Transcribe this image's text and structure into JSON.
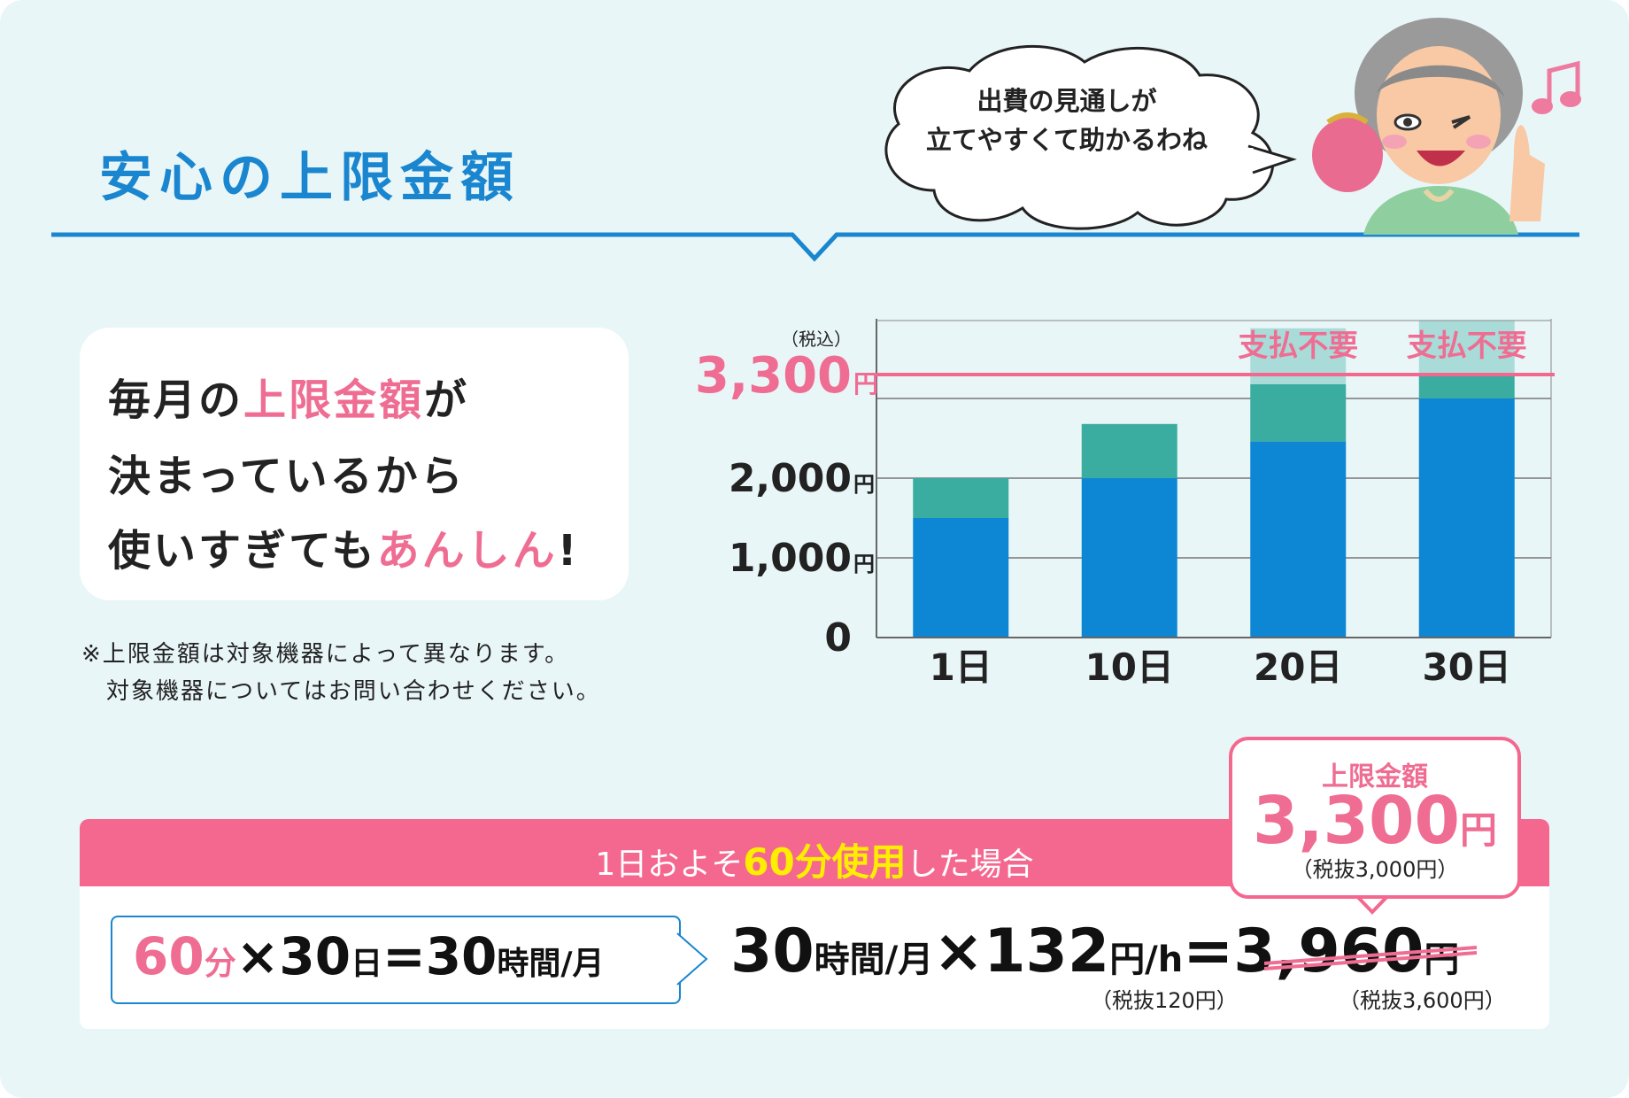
{
  "title": "安心の上限金額",
  "speech": {
    "line1": "出費の見通しが",
    "line2": "立てやすくて助かるわね"
  },
  "callout": {
    "line1_pre": "毎月の",
    "line1_em": "上限金額",
    "line1_post": "が",
    "line2": "決まっているから",
    "line3_pre": "使いすぎても",
    "line3_em": "あんしん",
    "line3_post": "!"
  },
  "footnote": {
    "line1": "※上限金額は対象機器によって異なります。",
    "line2": "対象機器についてはお問い合わせください。"
  },
  "colors": {
    "accent_blue": "#1a86cf",
    "accent_pink": "#f4678f",
    "bar_blue": "#0d86d4",
    "bar_teal": "#3aada0",
    "bar_unpaid": "#a9dcd8"
  },
  "chart_data": {
    "type": "bar",
    "stacked": true,
    "categories": [
      "1日",
      "10日",
      "20日",
      "30日"
    ],
    "series": [
      {
        "values": [
          1500,
          2000,
          2460,
          3000
        ]
      },
      {
        "values": [
          500,
          680,
          720,
          300
        ]
      },
      {
        "values": [
          0,
          0,
          700,
          1000
        ]
      }
    ],
    "column_labels": [
      "",
      "",
      "支払不要",
      "支払不要"
    ],
    "y_ticks": [
      {
        "value": 0,
        "label": "0",
        "unit": ""
      },
      {
        "value": 1000,
        "label": "1,000",
        "unit": "円"
      },
      {
        "value": 2000,
        "label": "2,000",
        "unit": "円"
      }
    ],
    "cap": {
      "value": 3300,
      "label": "3,300",
      "unit": "円",
      "note": "（税込）"
    },
    "ylim": [
      0,
      4000
    ]
  },
  "calc": {
    "header_pre": "1日およそ",
    "header_em": "60分使用",
    "header_post": "した場合",
    "rule": {
      "a": "60",
      "a_unit": "分",
      "times": "×",
      "b": "30",
      "b_unit": "日",
      "eq": "=",
      "c": "30",
      "c_unit": "時間/月"
    },
    "equation": {
      "a": "30",
      "a_unit": "時間/月",
      "times": "×",
      "b": "132",
      "b_unit": "円/h",
      "eq": "=",
      "c": "3,960",
      "c_unit": "円"
    },
    "rate_note": "（税抜120円）",
    "total_note": "（税抜3,600円）"
  },
  "cap_box": {
    "label": "上限金額",
    "value": "3,300",
    "unit": "円",
    "note": "（税抜3,000円）"
  }
}
